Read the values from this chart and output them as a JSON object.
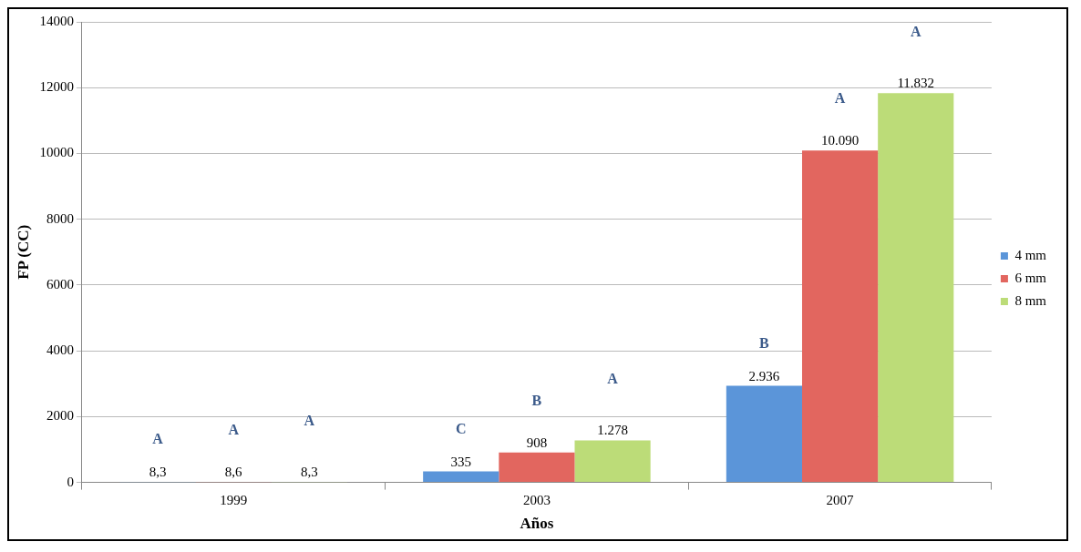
{
  "chart_data": {
    "type": "bar",
    "xlabel": "Años",
    "ylabel": "FP (CC)",
    "categories": [
      "1999",
      "2003",
      "2007"
    ],
    "series": [
      {
        "name": "4 mm",
        "color": "#5b95d9",
        "values": [
          8.3,
          335,
          2936
        ],
        "value_labels": [
          "8,3",
          "335",
          "2.936"
        ]
      },
      {
        "name": "6 mm",
        "color": "#e2665f",
        "values": [
          8.6,
          908,
          10090
        ],
        "value_labels": [
          "8,6",
          "908",
          "10.090"
        ]
      },
      {
        "name": "8 mm",
        "color": "#bcdc78",
        "values": [
          8.3,
          1278,
          11832
        ],
        "value_labels": [
          "8,3",
          "1.278",
          "11.832"
        ]
      }
    ],
    "ylim": [
      0,
      14000
    ],
    "yticks": [
      0,
      2000,
      4000,
      6000,
      8000,
      10000,
      12000,
      14000
    ],
    "grid": "y",
    "legend": "right",
    "annotations": [
      "A",
      "A",
      "A",
      "C",
      "B",
      "A",
      "B",
      "A",
      "A"
    ]
  }
}
